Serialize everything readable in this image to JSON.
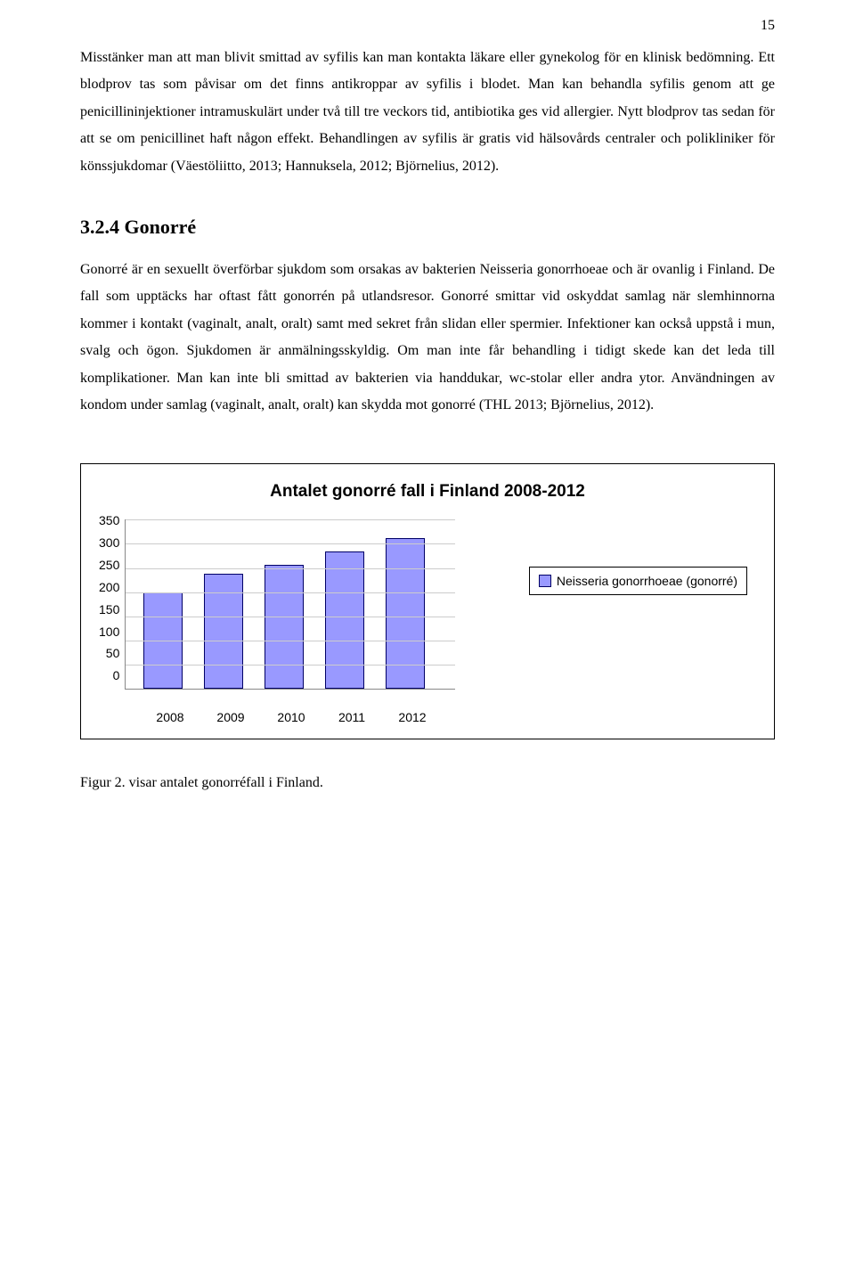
{
  "page_number": "15",
  "para1": "Misstänker man att man blivit smittad av syfilis kan man kontakta läkare eller gynekolog för en klinisk bedömning. Ett blodprov tas som påvisar om det finns antikroppar av syfilis i blodet. Man kan behandla syfilis genom att ge penicillininjektioner intramuskulärt under två till tre veckors tid, antibiotika ges vid allergier. Nytt blodprov tas sedan för att se om penicillinet haft någon effekt. Behandlingen av syfilis är gratis vid hälsovårds centraler och polikliniker för könssjukdomar (Väestöliitto, 2013; Hannuksela, 2012; Björnelius, 2012).",
  "heading": "3.2.4  Gonorré",
  "para2": "Gonorré är en sexuellt överförbar sjukdom som orsakas av bakterien Neisseria gonorrhoeae och är ovanlig i Finland. De fall som upptäcks har oftast fått gonorrén på utlandsresor. Gonorré smittar vid oskyddat samlag när slemhinnorna kommer i kontakt (vaginalt, analt, oralt) samt med sekret från slidan eller spermier. Infektioner kan också uppstå i mun, svalg och ögon. Sjukdomen är anmälningsskyldig. Om man inte får behandling i tidigt skede kan det leda till komplikationer. Man kan inte bli smittad av bakterien via handdukar, wc-stolar eller andra ytor.  Användningen av kondom under samlag (vaginalt, analt, oralt) kan skydda mot gonorré (THL 2013;  Björnelius, 2012).",
  "chart": {
    "type": "bar",
    "title": "Antalet gonorré fall i Finland 2008-2012",
    "categories": [
      "2008",
      "2009",
      "2010",
      "2011",
      "2012"
    ],
    "values": [
      200,
      238,
      257,
      285,
      312
    ],
    "y_ticks": [
      "350",
      "300",
      "250",
      "200",
      "150",
      "100",
      "50",
      "0"
    ],
    "ymax": 350,
    "bar_color": "#9999ff",
    "bar_border": "#000066",
    "legend_label": "Neisseria gonorrhoeae (gonorré)"
  },
  "figure_caption": "Figur 2. visar antalet gonorréfall i Finland."
}
